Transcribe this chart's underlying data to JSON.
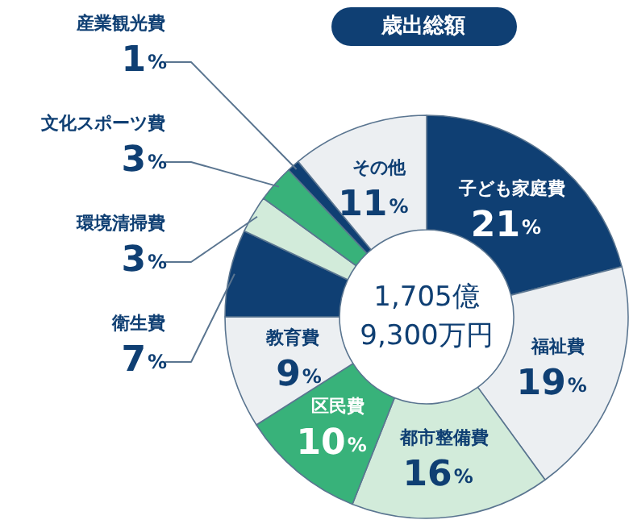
{
  "chart_data": {
    "type": "donut",
    "title": "歳出総額",
    "categories": [
      "子ども家庭費",
      "福祉費",
      "都市整備費",
      "区民費",
      "教育費",
      "衛生費",
      "環境清掃費",
      "文化スポーツ費",
      "産業観光費",
      "その他"
    ],
    "values": [
      21,
      19,
      16,
      10,
      9,
      7,
      3,
      3,
      1,
      11
    ],
    "colors": [
      "#0f3f73",
      "#eceff2",
      "#d2ebda",
      "#38b27a",
      "#eceff2",
      "#0f3f73",
      "#d2ebda",
      "#38b27a",
      "#0f3f73",
      "#eceff2"
    ],
    "value_labels": [
      "21%",
      "19%",
      "16%",
      "10%",
      "9%",
      "7%",
      "3%",
      "3%",
      "1%",
      "11%"
    ],
    "annotations": [
      "1,705億\n9,300万円"
    ]
  }
}
